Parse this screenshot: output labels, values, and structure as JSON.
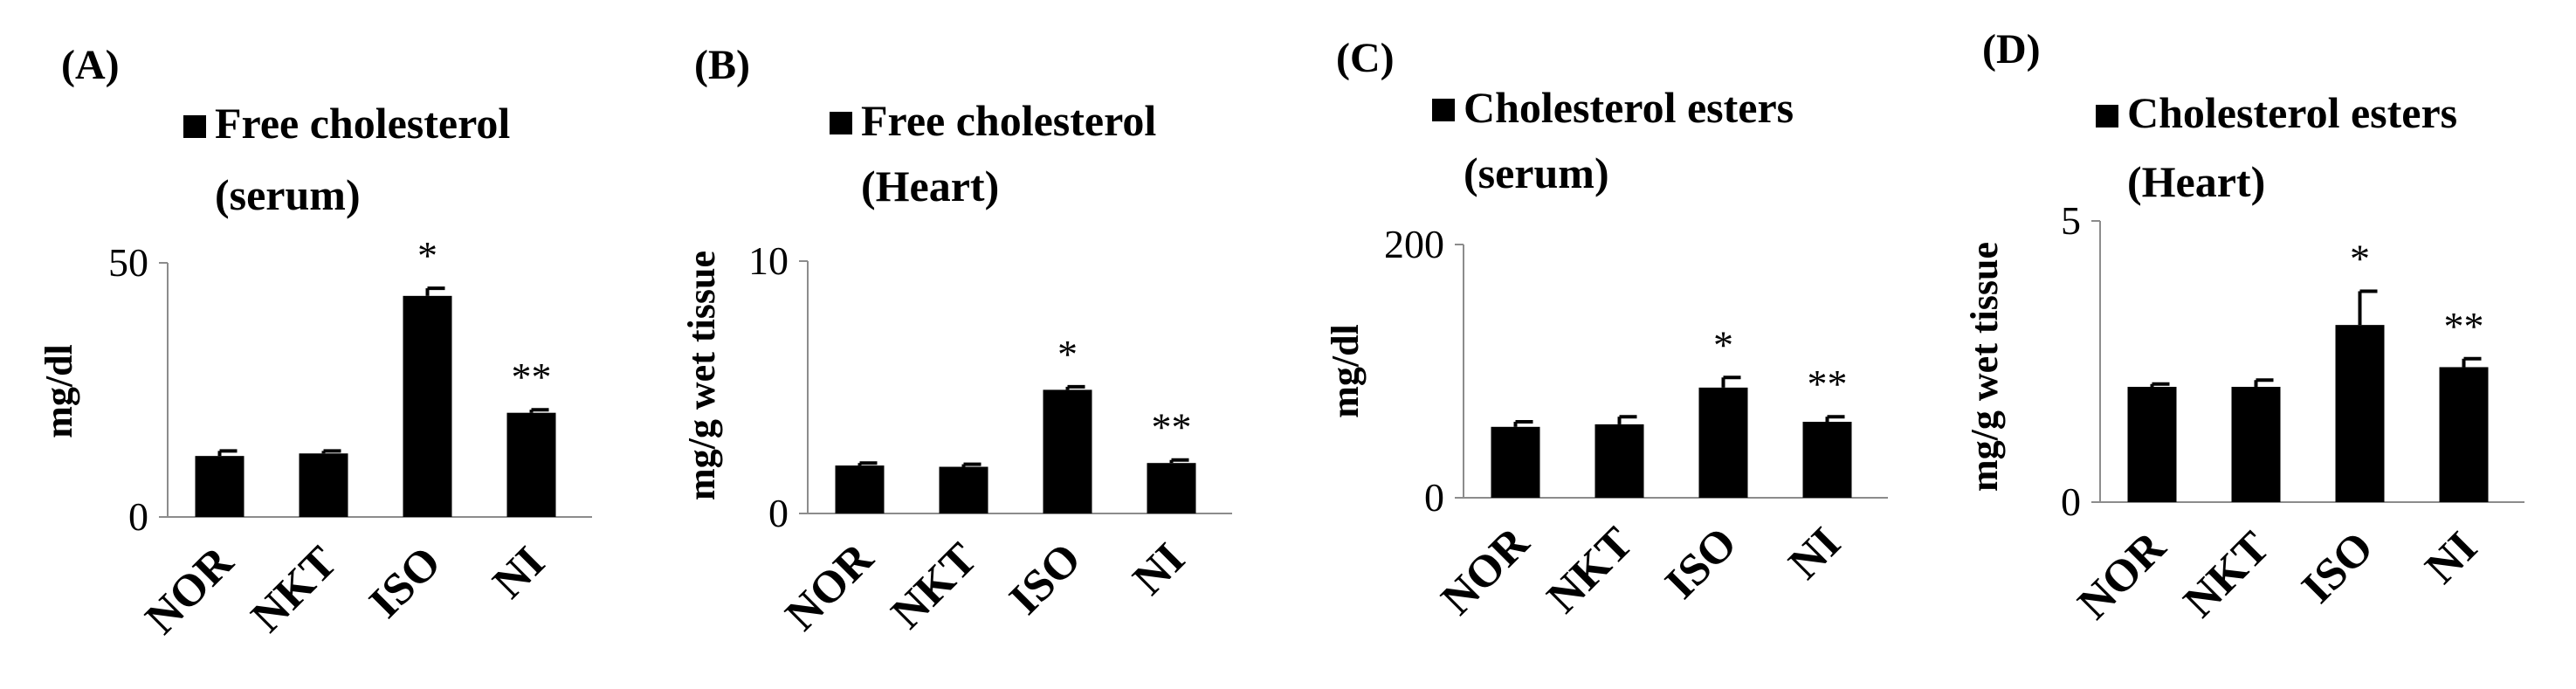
{
  "chart_data": [
    {
      "panel": "(A)",
      "type": "bar",
      "title_lines": [
        "Free cholesterol",
        "(serum)"
      ],
      "ylabel": "mg/dl",
      "xlabel": "",
      "categories": [
        "NOR",
        "NKT",
        "ISO",
        "NI"
      ],
      "values": [
        12,
        12.5,
        43.5,
        20.5
      ],
      "errors": [
        1,
        0.5,
        1.5,
        0.6
      ],
      "annotations": [
        "",
        "",
        "*",
        "**"
      ],
      "yticks": [
        "0",
        "50"
      ],
      "ylim": [
        0,
        50
      ],
      "legend": "top"
    },
    {
      "panel": "(B)",
      "type": "bar",
      "title_lines": [
        "Free cholesterol",
        "(Heart)"
      ],
      "ylabel": "mg/g wet tissue",
      "xlabel": "",
      "categories": [
        "NOR",
        "NKT",
        "ISO",
        "NI"
      ],
      "values": [
        1.9,
        1.85,
        4.9,
        2.0
      ],
      "errors": [
        0.1,
        0.1,
        0.12,
        0.12
      ],
      "annotations": [
        "",
        "",
        "*",
        "**"
      ],
      "yticks": [
        "0",
        "10"
      ],
      "ylim": [
        0,
        10
      ],
      "legend": "top"
    },
    {
      "panel": "(C)",
      "type": "bar",
      "title_lines": [
        "Cholesterol esters",
        "(serum)"
      ],
      "ylabel": "mg/dl",
      "xlabel": "",
      "categories": [
        "NOR",
        "NKT",
        "ISO",
        "NI"
      ],
      "values": [
        56,
        58,
        87,
        60
      ],
      "errors": [
        4,
        6,
        8,
        4
      ],
      "annotations": [
        "",
        "",
        "*",
        "**"
      ],
      "yticks": [
        "0",
        "200"
      ],
      "ylim": [
        0,
        200
      ],
      "legend": "top"
    },
    {
      "panel": "(D)",
      "type": "bar",
      "title_lines": [
        "Cholesterol esters",
        "(Heart)"
      ],
      "ylabel": "mg/g wet tissue",
      "xlabel": "",
      "categories": [
        "NOR",
        "NKT",
        "ISO",
        "NI"
      ],
      "values": [
        2.05,
        2.05,
        3.15,
        2.4
      ],
      "errors": [
        0.05,
        0.12,
        0.6,
        0.15
      ],
      "annotations": [
        "",
        "",
        "*",
        "**"
      ],
      "yticks": [
        "0",
        "5"
      ],
      "ylim": [
        0,
        5
      ],
      "legend": "top"
    }
  ]
}
